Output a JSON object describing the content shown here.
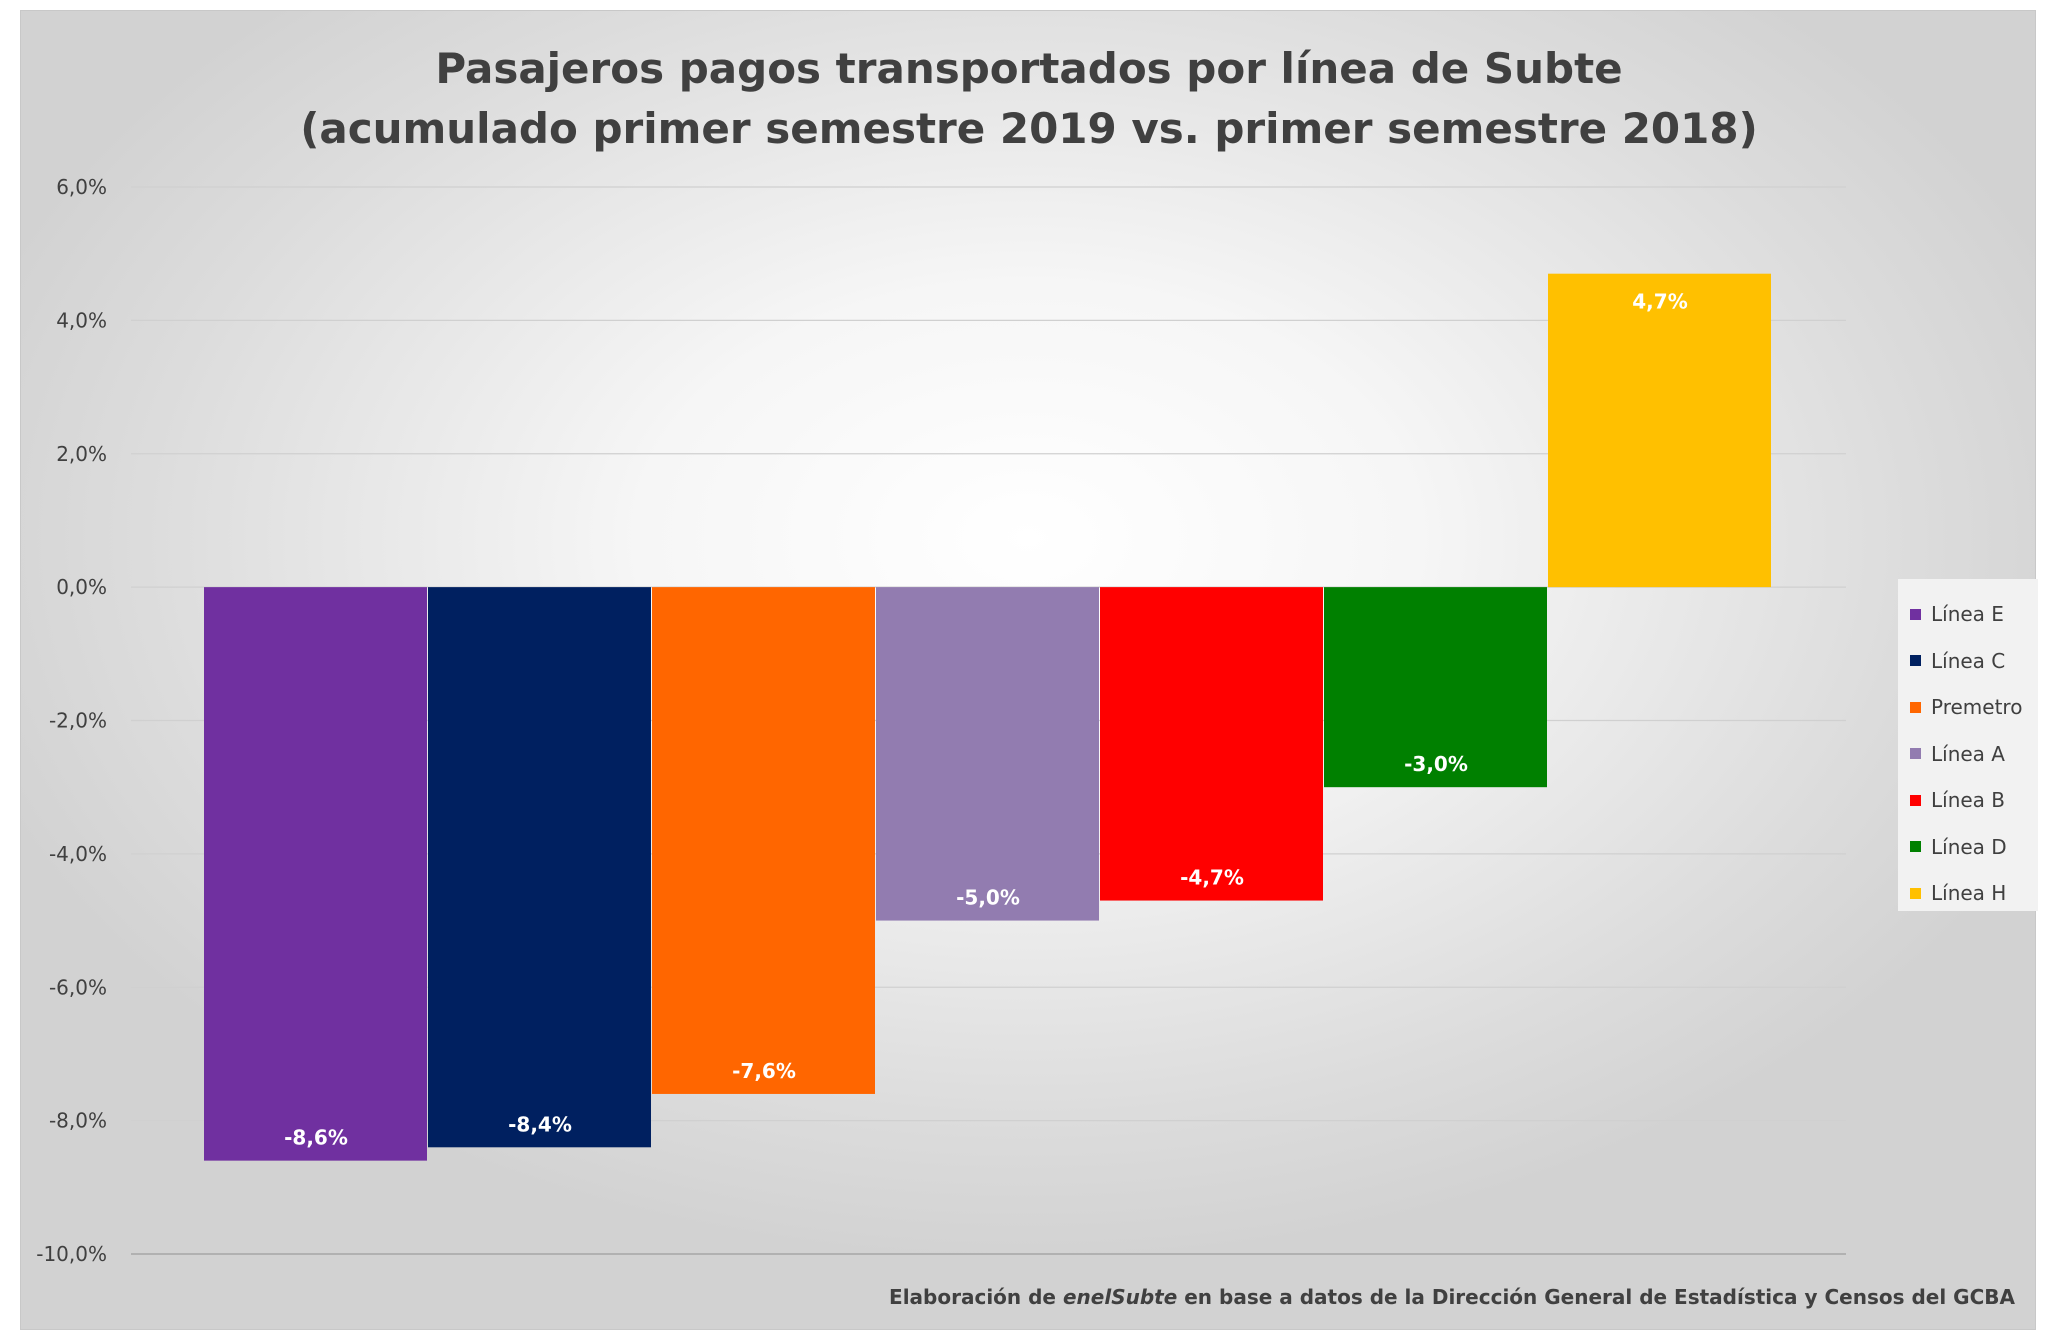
{
  "chart_data": {
    "type": "bar",
    "title_line1": "Pasajeros pagos transportados por línea de Subte",
    "title_line2": "(acumulado primer semestre 2019 vs. primer semestre 2018)",
    "categories": [
      "Línea E",
      "Línea C",
      "Premetro",
      "Línea A",
      "Línea B",
      "Línea D",
      "Línea H"
    ],
    "values": [
      -8.6,
      -8.4,
      -7.6,
      -5.0,
      -4.7,
      -3.0,
      4.7
    ],
    "data_labels": [
      "-8,6%",
      "-8,4%",
      "-7,6%",
      "-5,0%",
      "-4,7%",
      "-3,0%",
      "4,7%"
    ],
    "colors": [
      "#7030A0",
      "#002060",
      "#FF6600",
      "#927CB0",
      "#FF0000",
      "#008000",
      "#FFC000"
    ],
    "yaxis": {
      "min": -10,
      "max": 6,
      "ticks": [
        6,
        4,
        2,
        0,
        -2,
        -4,
        -6,
        -8,
        -10
      ],
      "tick_labels": [
        "6,0%",
        "4,0%",
        "2,0%",
        "0,0%",
        "-2,0%",
        "-4,0%",
        "-6,0%",
        "-8,0%",
        "-10,0%"
      ]
    },
    "grid": true,
    "legend_position": "right"
  },
  "source": {
    "prefix": "Elaboración de ",
    "emphasis": "enelSubte",
    "suffix": " en base a datos de la Dirección General de Estadística y Censos del GCBA"
  }
}
